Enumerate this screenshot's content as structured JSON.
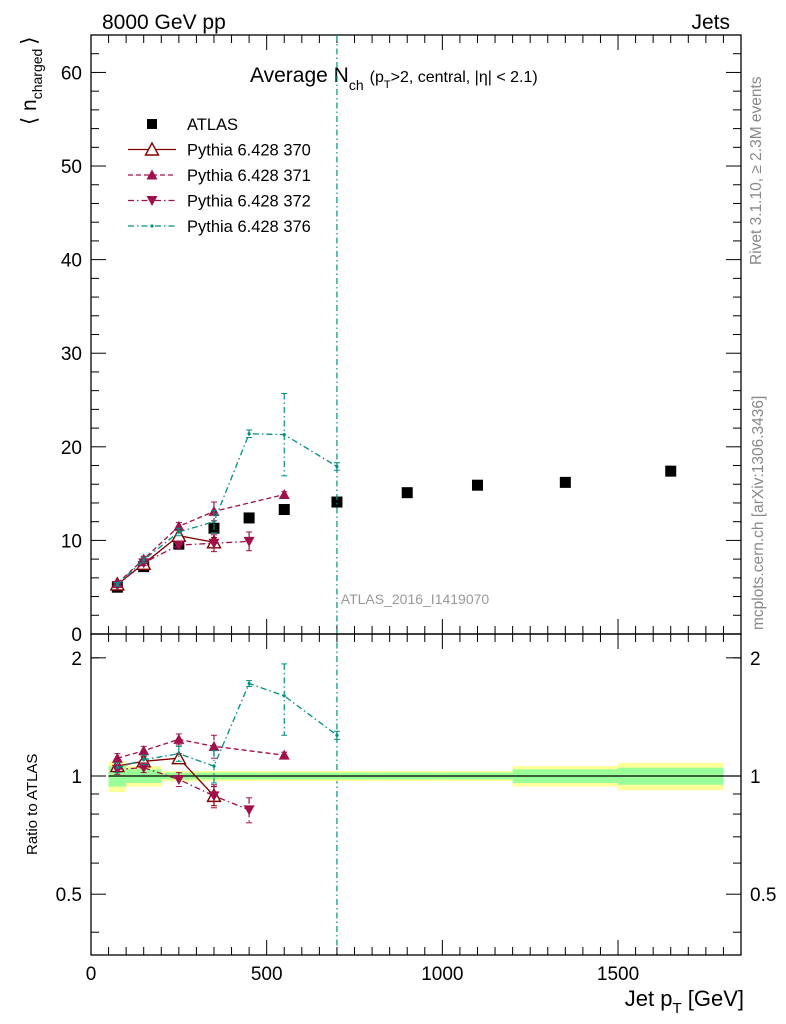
{
  "header": {
    "left": "8000 GeV pp",
    "right": "Jets"
  },
  "side_labels": {
    "rivet": "Rivet 3.1.10, ≥ 2.3M events",
    "mcplots": "mcplots.cern.ch [arXiv:1306.3436]"
  },
  "chart_data": {
    "type": "scatter",
    "title": {
      "main": "Average N",
      "sub": "ch",
      "rest": "(p",
      "rest_sub": "T",
      "rest_end": ">2, central, |η| < 2.1)"
    },
    "ylabel": {
      "main": "⟨ n",
      "sub": "charged",
      "end": "⟩"
    },
    "xlabel": {
      "main": "Jet p",
      "sub": "T",
      "end": " [GeV]"
    },
    "ratio_ylabel": "Ratio to ATLAS",
    "watermark": "ATLAS_2016_I1419070",
    "xlim": [
      0,
      1850
    ],
    "ylim": [
      0,
      64
    ],
    "ratio_ylim": [
      0.35,
      2.3
    ],
    "x_ticks": [
      "0",
      "500",
      "1000",
      "1500"
    ],
    "x_tick_values": [
      0,
      500,
      1000,
      1500
    ],
    "y_ticks": [
      "0",
      "10",
      "20",
      "30",
      "40",
      "50",
      "60"
    ],
    "y_tick_values": [
      0,
      10,
      20,
      30,
      40,
      50,
      60
    ],
    "ratio_ticks": [
      "0.5",
      "1",
      "2"
    ],
    "ratio_tick_values": [
      0.5,
      1,
      2
    ],
    "legend_position": "top-left",
    "series": [
      {
        "name": "ATLAS",
        "style": "marker-square",
        "color": "#000000",
        "x": [
          75,
          150,
          250,
          350,
          450,
          550,
          700,
          900,
          1100,
          1350,
          1650
        ],
        "y": [
          5.0,
          7.2,
          9.6,
          11.3,
          12.4,
          13.3,
          14.1,
          15.1,
          15.9,
          16.2,
          17.4
        ],
        "ratio_band_inner": [
          [
            50,
            100,
            0.06
          ],
          [
            100,
            200,
            0.04
          ],
          [
            200,
            300,
            0.02
          ],
          [
            300,
            400,
            0.02
          ],
          [
            400,
            500,
            0.02
          ],
          [
            500,
            600,
            0.02
          ],
          [
            600,
            800,
            0.02
          ],
          [
            800,
            1000,
            0.02
          ],
          [
            1000,
            1200,
            0.02
          ],
          [
            1200,
            1500,
            0.04
          ],
          [
            1500,
            1800,
            0.05
          ]
        ],
        "ratio_band_outer": [
          [
            50,
            100,
            0.09
          ],
          [
            100,
            200,
            0.06
          ],
          [
            200,
            300,
            0.03
          ],
          [
            300,
            400,
            0.03
          ],
          [
            400,
            500,
            0.03
          ],
          [
            500,
            600,
            0.03
          ],
          [
            600,
            800,
            0.03
          ],
          [
            800,
            1000,
            0.03
          ],
          [
            1000,
            1200,
            0.03
          ],
          [
            1200,
            1500,
            0.06
          ],
          [
            1500,
            1800,
            0.08
          ]
        ]
      },
      {
        "name": "Pythia 6.428 370",
        "style": "solid-open-triangle",
        "color": "#800000",
        "x": [
          75,
          150,
          250,
          350
        ],
        "y": [
          5.3,
          7.5,
          10.5,
          9.8
        ],
        "yerr": [
          0.2,
          0.3,
          0.3,
          0.5
        ],
        "ratio": [
          1.06,
          1.09,
          1.11,
          0.89
        ],
        "ratio_err": [
          0.03,
          0.03,
          0.03,
          0.05
        ]
      },
      {
        "name": "Pythia 6.428 371",
        "style": "dashed-filled-triangle",
        "color": "#a0104a",
        "x": [
          75,
          150,
          250,
          350,
          550
        ],
        "y": [
          5.4,
          8.0,
          11.5,
          13.1,
          14.9
        ],
        "yerr": [
          0.2,
          0.3,
          0.4,
          1.0,
          0.3
        ],
        "ratio": [
          1.11,
          1.16,
          1.24,
          1.19,
          1.13
        ],
        "ratio_err": [
          0.03,
          0.03,
          0.04,
          0.08,
          0.02
        ]
      },
      {
        "name": "Pythia 6.428 372",
        "style": "dashdot-inverted-triangle",
        "color": "#a0104a",
        "x": [
          75,
          150,
          250,
          350,
          450
        ],
        "y": [
          5.2,
          7.6,
          9.5,
          9.7,
          9.9
        ],
        "yerr": [
          0.2,
          0.3,
          0.3,
          0.9,
          1.0
        ],
        "ratio": [
          1.04,
          1.05,
          0.98,
          0.89,
          0.82
        ],
        "ratio_err": [
          0.03,
          0.03,
          0.04,
          0.06,
          0.06
        ]
      },
      {
        "name": "Pythia 6.428 376",
        "style": "dashdot-dot",
        "color": "#009080",
        "x": [
          75,
          150,
          250,
          350,
          450,
          550,
          700
        ],
        "y": [
          5.3,
          7.9,
          10.9,
          12.0,
          21.4,
          21.3,
          17.9
        ],
        "yerr": [
          0.2,
          0.3,
          0.4,
          1.2,
          0.4,
          4.4,
          0.4
        ],
        "ratio": [
          1.05,
          1.1,
          1.14,
          1.06,
          1.72,
          1.6,
          1.27
        ],
        "ratio_err": [
          0.03,
          0.03,
          0.05,
          0.1,
          0.03,
          0.33,
          0.03
        ],
        "vertical_line_x": 700
      }
    ]
  }
}
